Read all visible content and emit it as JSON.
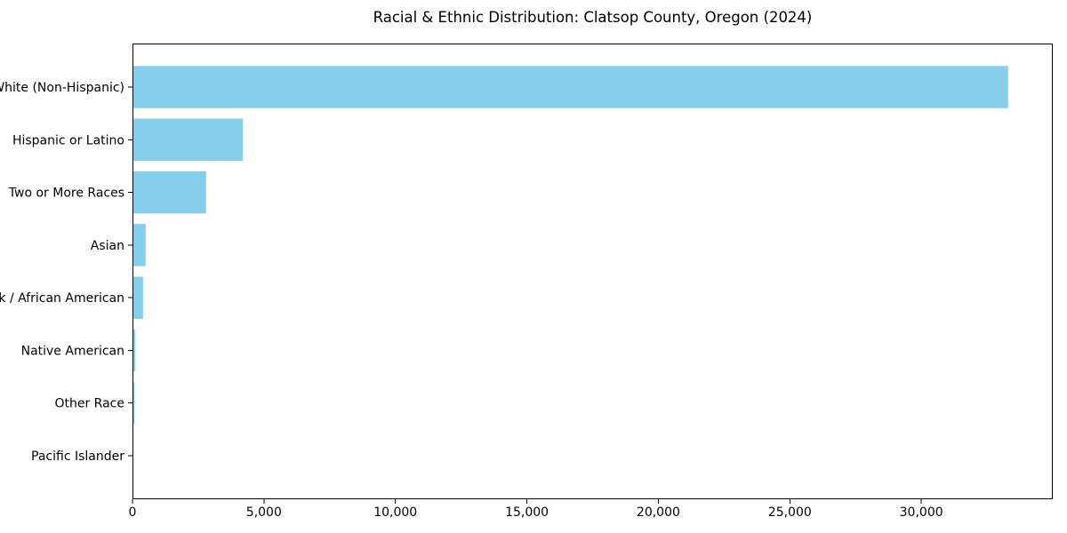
{
  "chart_data": {
    "type": "bar",
    "orientation": "horizontal",
    "title": "Racial & Ethnic Distribution: Clatsop County, Oregon (2024)",
    "categories": [
      "White (Non-Hispanic)",
      "Hispanic or Latino",
      "Two or More Races",
      "Asian",
      "Black / African American",
      "Native American",
      "Other Race",
      "Pacific Islander"
    ],
    "values": [
      33300,
      4200,
      2800,
      500,
      400,
      110,
      80,
      20
    ],
    "xlabel": "",
    "ylabel": "",
    "xlim": [
      0,
      35000
    ],
    "xticks": [
      0,
      5000,
      10000,
      15000,
      20000,
      25000,
      30000
    ],
    "xtick_labels": [
      "0",
      "5,000",
      "10,000",
      "15,000",
      "20,000",
      "25,000",
      "30,000"
    ],
    "grid": false,
    "legend": "none",
    "bar_color": "#87CEEB",
    "axis_color": "#000000",
    "text_color": "#000000",
    "background_color": "#ffffff"
  }
}
